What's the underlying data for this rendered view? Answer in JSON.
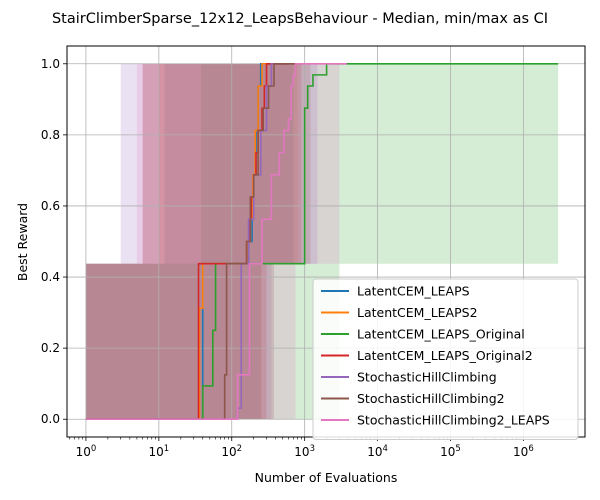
{
  "chart_data": {
    "type": "line",
    "title": "StairClimberSparse_12x12_LeapsBehaviour - Median, min/max as CI",
    "xlabel": "Number of Evaluations",
    "ylabel": "Best Reward",
    "xscale": "log",
    "xlim": [
      0.55,
      7000000
    ],
    "ylim": [
      -0.05,
      1.05
    ],
    "x_ticks": [
      {
        "value": 1,
        "label": "10^0"
      },
      {
        "value": 10,
        "label": "10^1"
      },
      {
        "value": 100,
        "label": "10^2"
      },
      {
        "value": 1000,
        "label": "10^3"
      },
      {
        "value": 10000,
        "label": "10^4"
      },
      {
        "value": 100000,
        "label": "10^5"
      },
      {
        "value": 1000000,
        "label": "10^6"
      }
    ],
    "y_ticks": [
      {
        "value": 0.0,
        "label": "0.0"
      },
      {
        "value": 0.2,
        "label": "0.2"
      },
      {
        "value": 0.4,
        "label": "0.4"
      },
      {
        "value": 0.6,
        "label": "0.6"
      },
      {
        "value": 0.8,
        "label": "0.8"
      },
      {
        "value": 1.0,
        "label": "1.0"
      }
    ],
    "grid": true,
    "legend_position": "lower-right",
    "series": [
      {
        "name": "LatentCEM_LEAPS",
        "color": "#1f77b4",
        "x": [
          1,
          38,
          40,
          90,
          150,
          170,
          190,
          200,
          215,
          230,
          250,
          600
        ],
        "y": [
          0,
          0,
          0.4375,
          0.4375,
          0.4375,
          0.5,
          0.625,
          0.6875,
          0.8125,
          0.9375,
          1.0,
          1.0
        ],
        "band_x": [
          1,
          12,
          38,
          250,
          700,
          1200
        ],
        "band_lower": [
          0,
          0,
          0,
          0.4375,
          1.0,
          1.0
        ],
        "band_upper": [
          0.4375,
          1.0,
          1.0,
          1.0,
          1.0,
          1.0
        ]
      },
      {
        "name": "LatentCEM_LEAPS2",
        "color": "#ff7f0e",
        "x": [
          1,
          34,
          36,
          40,
          150,
          165,
          180,
          195,
          210,
          230,
          260,
          600
        ],
        "y": [
          0,
          0,
          0.3125,
          0.4375,
          0.4375,
          0.5,
          0.5625,
          0.6875,
          0.8125,
          0.9375,
          1.0,
          1.0
        ],
        "band_x": [
          1,
          10,
          34,
          260,
          800,
          1500
        ],
        "band_lower": [
          0,
          0,
          0,
          0.4375,
          1.0,
          1.0
        ],
        "band_upper": [
          0.4375,
          1.0,
          1.0,
          1.0,
          1.0,
          1.0
        ]
      },
      {
        "name": "LatentCEM_LEAPS_Original",
        "color": "#2ca02c",
        "x": [
          1,
          38,
          40,
          50,
          55,
          60,
          700,
          900,
          1000,
          1100,
          1200,
          1300,
          1800,
          2000,
          3000000
        ],
        "y": [
          0,
          0,
          0.09375,
          0.09375,
          0.25,
          0.4375,
          0.4375,
          0.4375,
          0.875,
          0.9375,
          0.9375,
          0.96875,
          0.96875,
          1.0,
          1.0
        ],
        "band_x": [
          1,
          38,
          700,
          3000,
          50000,
          1000000,
          3000000
        ],
        "band_lower": [
          0,
          0,
          0,
          0.4375,
          0.4375,
          0.4375,
          1.0
        ],
        "band_upper": [
          0.4375,
          1.0,
          1.0,
          1.0,
          1.0,
          1.0,
          1.0
        ]
      },
      {
        "name": "LatentCEM_LEAPS_Original2",
        "color": "#d62728",
        "x": [
          1,
          33,
          35,
          130,
          160,
          175,
          185,
          200,
          215,
          230,
          260,
          280,
          300,
          330,
          600
        ],
        "y": [
          0,
          0,
          0.4375,
          0.4375,
          0.5,
          0.5625,
          0.625,
          0.6875,
          0.75,
          0.8125,
          0.875,
          0.9375,
          1.0,
          1.0,
          1.0
        ],
        "band_x": [
          1,
          6,
          33,
          300,
          900,
          1500
        ],
        "band_lower": [
          0,
          0,
          0,
          0.4375,
          1.0,
          1.0
        ],
        "band_upper": [
          0.4375,
          1.0,
          1.0,
          1.0,
          1.0,
          1.0
        ]
      },
      {
        "name": "StochasticHillClimbing",
        "color": "#9467bd",
        "x": [
          1,
          110,
          120,
          135,
          150,
          170,
          200,
          250,
          300,
          350,
          600
        ],
        "y": [
          0,
          0,
          0.03125,
          0.4375,
          0.4375,
          0.5625,
          0.6875,
          0.8125,
          0.9375,
          1.0,
          1.0
        ],
        "band_x": [
          1,
          3,
          110,
          350,
          1500,
          3500
        ],
        "band_lower": [
          0,
          0,
          0,
          0.4375,
          1.0,
          1.0
        ],
        "band_upper": [
          0.4375,
          1.0,
          1.0,
          1.0,
          1.0,
          1.0
        ]
      },
      {
        "name": "StochasticHillClimbing2",
        "color": "#8c564b",
        "x": [
          1,
          75,
          80,
          85,
          150,
          160,
          180,
          200,
          230,
          270,
          320,
          380,
          500,
          900
        ],
        "y": [
          0,
          0,
          0.125,
          0.4375,
          0.4375,
          0.5,
          0.625,
          0.6875,
          0.8125,
          0.875,
          0.9375,
          1.0,
          1.0,
          1.0
        ],
        "band_x": [
          1,
          6,
          75,
          380,
          1200,
          2500
        ],
        "band_lower": [
          0,
          0,
          0,
          0.4375,
          1.0,
          1.0
        ],
        "band_upper": [
          0.4375,
          1.0,
          1.0,
          1.0,
          1.0,
          1.0
        ]
      },
      {
        "name": "StochasticHillClimbing2_LEAPS",
        "color": "#e377c2",
        "x": [
          1,
          115,
          120,
          175,
          190,
          260,
          350,
          450,
          520,
          600,
          650,
          700,
          750,
          3800
        ],
        "y": [
          0,
          0,
          0.125,
          0.4375,
          0.4375,
          0.5625,
          0.6875,
          0.75,
          0.8125,
          0.84375,
          0.9375,
          0.96875,
          1.0,
          1.0
        ],
        "band_x": [
          1,
          5,
          115,
          750,
          3000,
          3800
        ],
        "band_lower": [
          0,
          0,
          0,
          0.4375,
          1.0,
          1.0
        ],
        "band_upper": [
          0.4375,
          1.0,
          1.0,
          1.0,
          1.0,
          1.0
        ]
      }
    ]
  }
}
